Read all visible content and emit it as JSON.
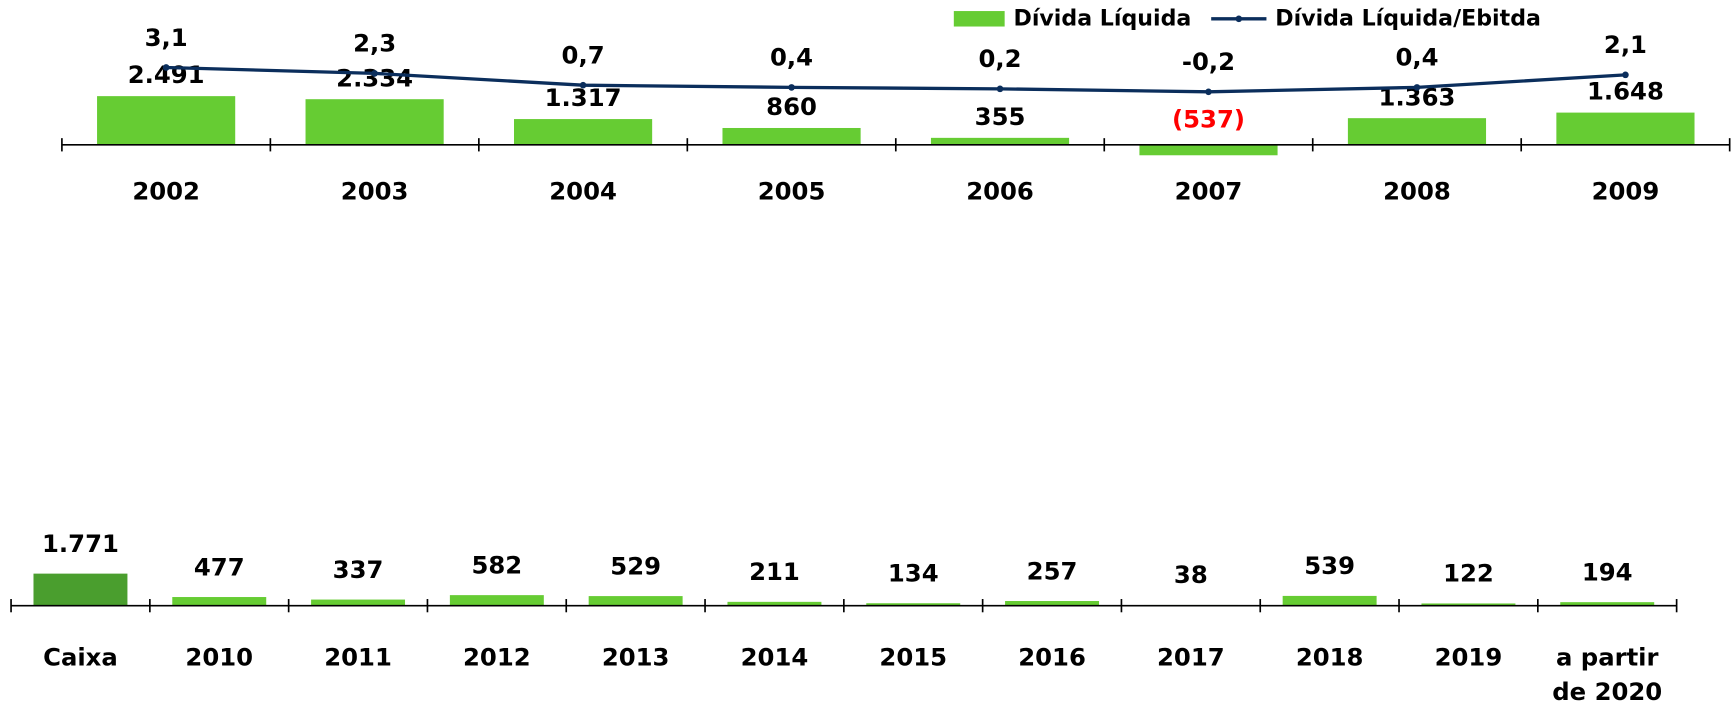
{
  "chart_data": [
    {
      "type": "bar",
      "categories": [
        "2002",
        "2003",
        "2004",
        "2005",
        "2006",
        "2007",
        "2008",
        "2009"
      ],
      "series": [
        {
          "name": "Dívida Líquida",
          "color": "#66cc33",
          "type": "bar",
          "values": [
            2491,
            2334,
            1317,
            860,
            355,
            -537,
            1363,
            1648
          ],
          "value_labels": [
            "2.491",
            "2.334",
            "1.317",
            "860",
            "355",
            "(537)",
            "1.363",
            "1.648"
          ]
        },
        {
          "name": "Dívida Líquida/Ebitda",
          "color": "#0b2e5c",
          "type": "line",
          "axis": "y2",
          "values": [
            3.1,
            2.3,
            0.7,
            0.4,
            0.2,
            -0.2,
            0.4,
            2.1
          ],
          "value_labels": [
            "3,1",
            "2,3",
            "0,7",
            "0,4",
            "0,2",
            "-0,2",
            "0,4",
            "2,1"
          ]
        }
      ],
      "ylim": [
        -1000,
        5000
      ],
      "y2lim": [
        -1,
        5
      ],
      "legend": "top-right",
      "negative_label_color": "#ff0000"
    },
    {
      "type": "bar",
      "categories": [
        "Caixa",
        "2010",
        "2011",
        "2012",
        "2013",
        "2014",
        "2015",
        "2016",
        "2017",
        "2018",
        "2019",
        "a partir\nde 2020"
      ],
      "values": [
        1771,
        477,
        337,
        582,
        529,
        211,
        134,
        257,
        38,
        539,
        122,
        194
      ],
      "value_labels": [
        "1.771",
        "477",
        "337",
        "582",
        "529",
        "211",
        "134",
        "257",
        "38",
        "539",
        "122",
        "194"
      ],
      "colors": [
        "#4a9e2e",
        "#66cc33",
        "#66cc33",
        "#66cc33",
        "#66cc33",
        "#66cc33",
        "#66cc33",
        "#66cc33",
        "#66cc33",
        "#66cc33",
        "#66cc33",
        "#66cc33"
      ],
      "ylim": [
        0,
        3000
      ]
    }
  ]
}
